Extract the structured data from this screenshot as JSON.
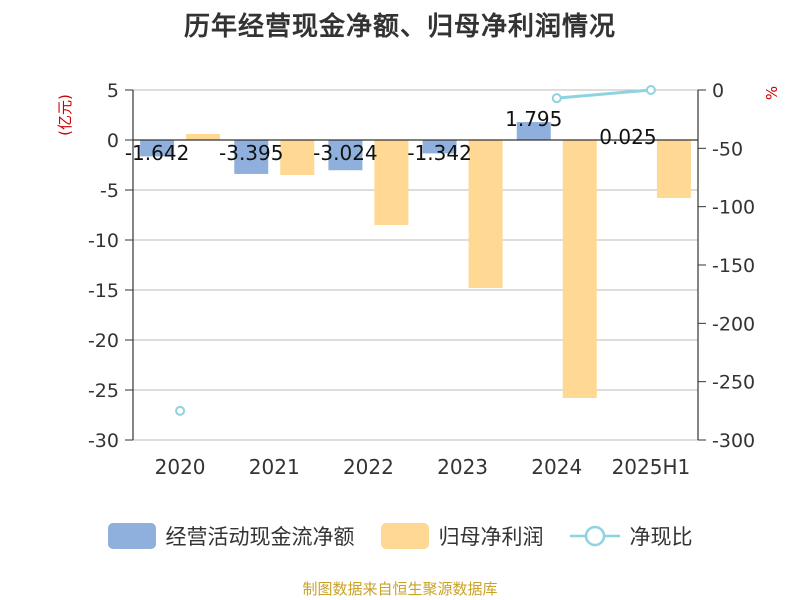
{
  "title": "历年经营现金净额、归母净利润情况",
  "source_note": "制图数据来自恒生聚源数据库",
  "colors": {
    "cash_flow": "#8fb0dc",
    "net_profit": "#ffd894",
    "ratio": "#8ed3df",
    "axis_unit": "#cc0000",
    "grid": "#bbbbbb"
  },
  "legend": [
    {
      "label": "经营活动现金流净额",
      "icon": "bar-swatch-blue"
    },
    {
      "label": "归母净利润",
      "icon": "bar-swatch-orange"
    },
    {
      "label": "净现比",
      "icon": "line-circle-marker"
    }
  ],
  "chart_data": {
    "type": "bar",
    "title": "历年经营现金净额、归母净利润情况",
    "categories": [
      "2020",
      "2021",
      "2022",
      "2023",
      "2024",
      "2025H1"
    ],
    "left_axis": {
      "unit_label": "(亿元)",
      "ylim": [
        -30,
        5
      ],
      "ticks": [
        5,
        0,
        -5,
        -10,
        -15,
        -20,
        -25,
        -30
      ]
    },
    "right_axis": {
      "unit_label": "%",
      "ylim": [
        -300,
        0
      ],
      "ticks": [
        0,
        -50,
        -100,
        -150,
        -200,
        -250,
        -300
      ]
    },
    "grid": true,
    "legend_position": "bottom",
    "series": [
      {
        "name": "经营活动现金流净额",
        "type": "bar",
        "axis": "left",
        "values": [
          -1.642,
          -3.395,
          -3.024,
          -1.342,
          1.795,
          0.025
        ],
        "data_labels": [
          "-1.642",
          "-3.395",
          "-3.024",
          "-1.342",
          "1.795",
          "0.025"
        ]
      },
      {
        "name": "归母净利润",
        "type": "bar",
        "axis": "left",
        "values": [
          0.6,
          -3.5,
          -8.5,
          -14.8,
          -25.8,
          -5.8
        ]
      },
      {
        "name": "净现比",
        "type": "line",
        "axis": "right",
        "values": [
          -275,
          null,
          null,
          null,
          -7,
          0
        ]
      }
    ]
  }
}
